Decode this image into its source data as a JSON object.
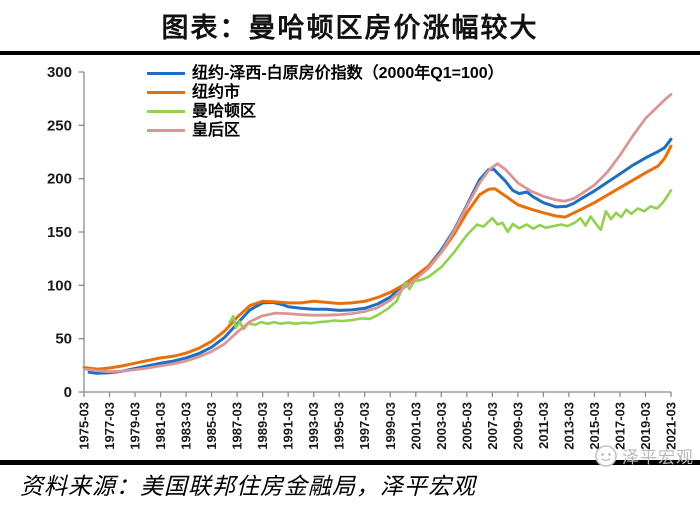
{
  "page": {
    "title": "图表：曼哈顿区房价涨幅较大",
    "source": "资料来源：美国联邦住房金融局，泽平宏观",
    "watermark": "泽平宏观"
  },
  "chart_data": {
    "type": "line",
    "title": "图表：曼哈顿区房价涨幅较大",
    "legend_position": "top-left-inside",
    "grid": false,
    "axis_color": "#8c8c8c",
    "y_axis": {
      "ticks": [
        0,
        50,
        100,
        150,
        200,
        250,
        300
      ],
      "range": [
        0,
        300
      ]
    },
    "x_axis": {
      "range": [
        1975.2,
        2021.2
      ],
      "tick_labels": [
        "1975-03",
        "1977-03",
        "1979-03",
        "1981-03",
        "1983-03",
        "1985-03",
        "1987-03",
        "1989-03",
        "1991-03",
        "1993-03",
        "1995-03",
        "1997-03",
        "1999-03",
        "2001-03",
        "2003-03",
        "2005-03",
        "2007-03",
        "2009-03",
        "2011-03",
        "2013-03",
        "2015-03",
        "2017-03",
        "2019-03",
        "2021-03"
      ]
    },
    "series": [
      {
        "name": "纽约-泽西-白原房价指数（2000年Q1=100）",
        "color": "#1e6fbf",
        "width": 3,
        "points": [
          [
            1975.6,
            18.5
          ],
          [
            1976.2,
            17.5
          ],
          [
            1977.2,
            18
          ],
          [
            1978.2,
            19.5
          ],
          [
            1979.2,
            22
          ],
          [
            1980.2,
            24.5
          ],
          [
            1981.2,
            27
          ],
          [
            1982.2,
            29
          ],
          [
            1983.2,
            32
          ],
          [
            1984.2,
            36
          ],
          [
            1985.2,
            42
          ],
          [
            1986.2,
            51
          ],
          [
            1987.2,
            64
          ],
          [
            1988.2,
            77
          ],
          [
            1989.2,
            83.5
          ],
          [
            1990,
            84
          ],
          [
            1990.7,
            82
          ],
          [
            1991.2,
            80
          ],
          [
            1992.2,
            78.5
          ],
          [
            1993.2,
            77.5
          ],
          [
            1994.2,
            77.5
          ],
          [
            1995.2,
            76.5
          ],
          [
            1996.2,
            77
          ],
          [
            1997.2,
            78.5
          ],
          [
            1998.2,
            82.5
          ],
          [
            1999.2,
            89
          ],
          [
            2000.2,
            100
          ],
          [
            2001.2,
            108
          ],
          [
            2002.2,
            118
          ],
          [
            2003.2,
            133
          ],
          [
            2004.2,
            152
          ],
          [
            2005.2,
            175
          ],
          [
            2006.2,
            199
          ],
          [
            2006.9,
            208.5
          ],
          [
            2007.3,
            209
          ],
          [
            2008.2,
            198
          ],
          [
            2008.8,
            189
          ],
          [
            2009.3,
            186
          ],
          [
            2009.9,
            187.5
          ],
          [
            2010.4,
            183
          ],
          [
            2011.2,
            177.5
          ],
          [
            2012.2,
            173.5
          ],
          [
            2013,
            174
          ],
          [
            2013.6,
            177
          ],
          [
            2014.2,
            181.5
          ],
          [
            2015.2,
            188.5
          ],
          [
            2016.2,
            196.5
          ],
          [
            2017.2,
            204.5
          ],
          [
            2018.2,
            212.5
          ],
          [
            2019.2,
            219.5
          ],
          [
            2020.2,
            225.5
          ],
          [
            2020.7,
            229
          ],
          [
            2021.2,
            237
          ]
        ]
      },
      {
        "name": "纽约市",
        "color": "#e8700a",
        "width": 3,
        "points": [
          [
            1975.2,
            23
          ],
          [
            1975.8,
            22
          ],
          [
            1976.3,
            21.5
          ],
          [
            1977.2,
            22.5
          ],
          [
            1978.2,
            24.5
          ],
          [
            1979.2,
            27
          ],
          [
            1980.2,
            29.5
          ],
          [
            1981.2,
            32
          ],
          [
            1982.2,
            33.5
          ],
          [
            1983.2,
            36.5
          ],
          [
            1984.2,
            41
          ],
          [
            1985.2,
            47.5
          ],
          [
            1986.2,
            57
          ],
          [
            1987.2,
            70
          ],
          [
            1988.2,
            81
          ],
          [
            1989.2,
            85
          ],
          [
            1990.2,
            84.5
          ],
          [
            1991.2,
            83.5
          ],
          [
            1992.2,
            83.5
          ],
          [
            1993.2,
            85
          ],
          [
            1994.2,
            84
          ],
          [
            1995.2,
            83
          ],
          [
            1996.2,
            83.5
          ],
          [
            1997.2,
            85
          ],
          [
            1998.2,
            88.5
          ],
          [
            1999.2,
            93.5
          ],
          [
            2000.2,
            100
          ],
          [
            2001.2,
            109
          ],
          [
            2002.2,
            118
          ],
          [
            2003.2,
            131
          ],
          [
            2004.2,
            148
          ],
          [
            2005.2,
            168
          ],
          [
            2006.2,
            185
          ],
          [
            2006.9,
            190
          ],
          [
            2007.4,
            190.5
          ],
          [
            2008.2,
            184
          ],
          [
            2009.2,
            175.5
          ],
          [
            2010.2,
            171.5
          ],
          [
            2011.2,
            168
          ],
          [
            2012.2,
            165
          ],
          [
            2012.9,
            164
          ],
          [
            2013.6,
            168
          ],
          [
            2014.2,
            171.5
          ],
          [
            2015.2,
            177.5
          ],
          [
            2016.2,
            184.5
          ],
          [
            2017.2,
            191.5
          ],
          [
            2018.2,
            198.5
          ],
          [
            2019.2,
            205.5
          ],
          [
            2020.2,
            212
          ],
          [
            2020.7,
            219
          ],
          [
            2021.2,
            230.5
          ]
        ]
      },
      {
        "name": "曼哈顿区",
        "color": "#92d050",
        "width": 2.6,
        "points": [
          [
            1986.6,
            65
          ],
          [
            1986.9,
            71
          ],
          [
            1987.1,
            60
          ],
          [
            1987.4,
            66
          ],
          [
            1987.7,
            59
          ],
          [
            1988.1,
            64.5
          ],
          [
            1988.6,
            63
          ],
          [
            1989.1,
            65.5
          ],
          [
            1989.6,
            64
          ],
          [
            1990.1,
            65.5
          ],
          [
            1990.6,
            64
          ],
          [
            1991.2,
            65
          ],
          [
            1991.8,
            64
          ],
          [
            1992.4,
            65
          ],
          [
            1993,
            64.5
          ],
          [
            1993.6,
            65.5
          ],
          [
            1994.2,
            66
          ],
          [
            1994.8,
            67
          ],
          [
            1995.4,
            66.5
          ],
          [
            1996.2,
            67.5
          ],
          [
            1997,
            69
          ],
          [
            1997.6,
            68.5
          ],
          [
            1998.2,
            72
          ],
          [
            1999,
            78
          ],
          [
            1999.7,
            85
          ],
          [
            2000.1,
            96
          ],
          [
            2000.4,
            103
          ],
          [
            2000.7,
            96.5
          ],
          [
            2001.1,
            104
          ],
          [
            2001.6,
            105
          ],
          [
            2002.2,
            108
          ],
          [
            2003.2,
            117
          ],
          [
            2004.2,
            131
          ],
          [
            2005.2,
            147
          ],
          [
            2006,
            157
          ],
          [
            2006.5,
            155
          ],
          [
            2007.2,
            163
          ],
          [
            2007.6,
            157
          ],
          [
            2008,
            158.5
          ],
          [
            2008.4,
            150
          ],
          [
            2008.8,
            157.5
          ],
          [
            2009.3,
            153.5
          ],
          [
            2009.9,
            157
          ],
          [
            2010.4,
            153
          ],
          [
            2010.9,
            156.5
          ],
          [
            2011.4,
            154
          ],
          [
            2012,
            155.5
          ],
          [
            2012.6,
            157
          ],
          [
            2013.1,
            155.5
          ],
          [
            2013.7,
            159
          ],
          [
            2014.1,
            163
          ],
          [
            2014.5,
            156
          ],
          [
            2014.9,
            164.5
          ],
          [
            2015.3,
            158
          ],
          [
            2015.7,
            152
          ],
          [
            2016.1,
            169.5
          ],
          [
            2016.5,
            162
          ],
          [
            2016.9,
            168
          ],
          [
            2017.3,
            164
          ],
          [
            2017.7,
            171
          ],
          [
            2018.1,
            167
          ],
          [
            2018.6,
            172
          ],
          [
            2019.1,
            169.5
          ],
          [
            2019.6,
            174
          ],
          [
            2020.1,
            172
          ],
          [
            2020.6,
            178
          ],
          [
            2021.2,
            189
          ]
        ]
      },
      {
        "name": "皇后区",
        "color": "#d99694",
        "width": 2.8,
        "points": [
          [
            1975.3,
            21.5
          ],
          [
            1976.2,
            20
          ],
          [
            1977.2,
            19
          ],
          [
            1978.2,
            19.5
          ],
          [
            1979.2,
            21
          ],
          [
            1980.2,
            22.5
          ],
          [
            1981.2,
            24.5
          ],
          [
            1982.2,
            26.5
          ],
          [
            1983.2,
            29
          ],
          [
            1984.2,
            33
          ],
          [
            1985.2,
            38
          ],
          [
            1986.2,
            45
          ],
          [
            1987.2,
            56
          ],
          [
            1988.2,
            66
          ],
          [
            1989.2,
            71.5
          ],
          [
            1990.2,
            74
          ],
          [
            1991.2,
            73.5
          ],
          [
            1992.2,
            72.5
          ],
          [
            1993.2,
            72
          ],
          [
            1994.2,
            72
          ],
          [
            1995.2,
            72.5
          ],
          [
            1996.2,
            73.5
          ],
          [
            1997.2,
            75.5
          ],
          [
            1998.2,
            79
          ],
          [
            1999.2,
            86
          ],
          [
            2000.2,
            97
          ],
          [
            2001.2,
            106
          ],
          [
            2002.2,
            116
          ],
          [
            2003.2,
            131
          ],
          [
            2004.2,
            151
          ],
          [
            2005.2,
            174
          ],
          [
            2006.2,
            196
          ],
          [
            2007,
            209
          ],
          [
            2007.6,
            214
          ],
          [
            2008.2,
            209
          ],
          [
            2009.2,
            196
          ],
          [
            2010.2,
            188.5
          ],
          [
            2011.2,
            183.5
          ],
          [
            2012.2,
            180
          ],
          [
            2012.9,
            179
          ],
          [
            2013.6,
            181.5
          ],
          [
            2014.2,
            186
          ],
          [
            2015.2,
            194
          ],
          [
            2016.2,
            206
          ],
          [
            2017.2,
            222
          ],
          [
            2018.2,
            240
          ],
          [
            2019.2,
            256.5
          ],
          [
            2020.2,
            268
          ],
          [
            2020.8,
            275
          ],
          [
            2021.2,
            279
          ]
        ]
      }
    ]
  }
}
